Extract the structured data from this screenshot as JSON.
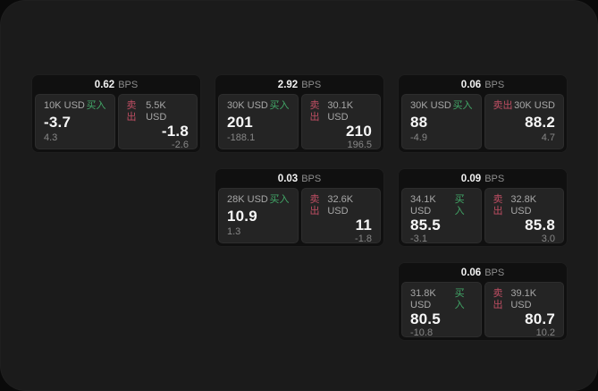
{
  "labels": {
    "bps_unit": "BPS",
    "buy": "买入",
    "sell": "卖出"
  },
  "colors": {
    "buy-color": "#42a868",
    "sell-color": "#bf4e63",
    "screen-bg": "#1b1b1b",
    "card-bg": "#101010",
    "panel-bg": "#242424"
  },
  "cards": [
    {
      "bps": "0.62",
      "buy": {
        "amount": "10K USD",
        "value": "-3.7",
        "delta": "4.3"
      },
      "sell": {
        "amount": "5.5K USD",
        "value": "-1.8",
        "delta": "-2.6"
      }
    },
    {
      "bps": "2.92",
      "buy": {
        "amount": "30K USD",
        "value": "201",
        "delta": "-188.1"
      },
      "sell": {
        "amount": "30.1K USD",
        "value": "210",
        "delta": "196.5"
      }
    },
    {
      "bps": "0.06",
      "buy": {
        "amount": "30K USD",
        "value": "88",
        "delta": "-4.9"
      },
      "sell": {
        "amount": "30K USD",
        "value": "88.2",
        "delta": "4.7"
      }
    },
    {
      "bps": "0.03",
      "buy": {
        "amount": "28K USD",
        "value": "10.9",
        "delta": "1.3"
      },
      "sell": {
        "amount": "32.6K USD",
        "value": "11",
        "delta": "-1.8"
      }
    },
    {
      "bps": "0.09",
      "buy": {
        "amount": "34.1K USD",
        "value": "85.5",
        "delta": "-3.1"
      },
      "sell": {
        "amount": "32.8K USD",
        "value": "85.8",
        "delta": "3.0"
      }
    },
    {
      "bps": "0.06",
      "buy": {
        "amount": "31.8K USD",
        "value": "80.5",
        "delta": "-10.8"
      },
      "sell": {
        "amount": "39.1K USD",
        "value": "80.7",
        "delta": "10.2"
      }
    }
  ]
}
